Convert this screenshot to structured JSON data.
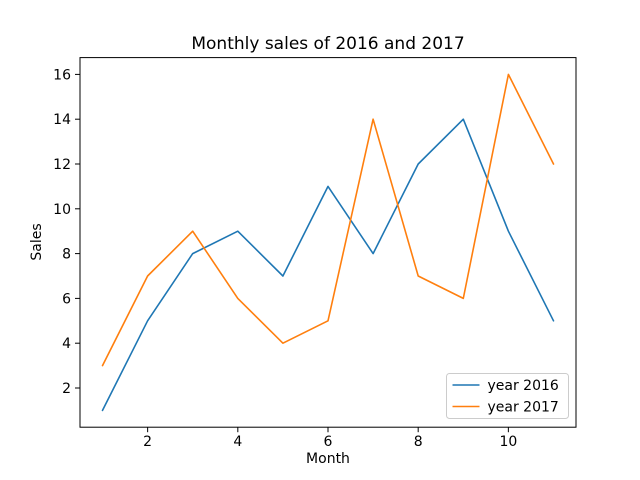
{
  "window": {
    "background": "#ffffff",
    "text_color": "#000000",
    "axes_edge_color": "#000000",
    "legend_border_color": "#cccccc"
  },
  "chart_data": {
    "type": "line",
    "title": "Monthly sales of 2016 and 2017",
    "xlabel": "Month",
    "ylabel": "Sales",
    "x": [
      1,
      2,
      3,
      4,
      5,
      6,
      7,
      8,
      9,
      10,
      11
    ],
    "series": [
      {
        "name": "year 2016",
        "color": "#1f77b4",
        "values": [
          1,
          5,
          8,
          9,
          7,
          11,
          8,
          12,
          14,
          9,
          5
        ]
      },
      {
        "name": "year 2017",
        "color": "#ff7f0e",
        "values": [
          3,
          7,
          9,
          6,
          4,
          5,
          14,
          7,
          6,
          16,
          12
        ]
      }
    ],
    "xticks": [
      2,
      4,
      6,
      8,
      10
    ],
    "yticks": [
      2,
      4,
      6,
      8,
      10,
      12,
      14,
      16
    ],
    "xlim": [
      0.5,
      11.5
    ],
    "ylim": [
      0.25,
      16.75
    ],
    "grid": false,
    "legend": {
      "position": "lower right",
      "entries": [
        "year 2016",
        "year 2017"
      ]
    }
  }
}
